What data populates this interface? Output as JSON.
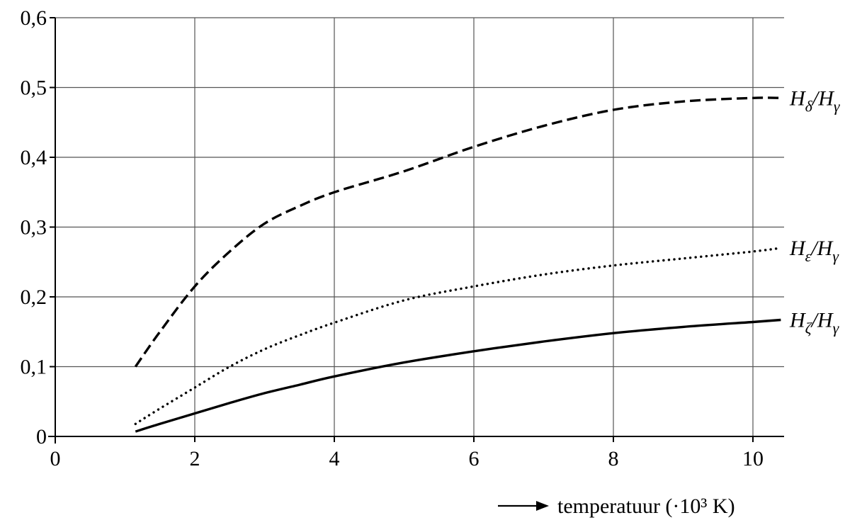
{
  "chart_data": {
    "type": "line",
    "xlabel": "temperatuur (·10³ K)",
    "xlim": [
      0,
      10.4
    ],
    "ylim": [
      0,
      0.6
    ],
    "x_ticks": [
      0,
      2,
      4,
      6,
      8,
      10
    ],
    "x_tick_labels": [
      "0",
      "2",
      "4",
      "6",
      "8",
      "10"
    ],
    "y_ticks": [
      0,
      0.1,
      0.2,
      0.3,
      0.4,
      0.5,
      0.6
    ],
    "y_tick_labels": [
      "0",
      "0,1",
      "0,2",
      "0,3",
      "0,4",
      "0,5",
      "0,6"
    ],
    "grid": true,
    "series": [
      {
        "name": "Hδ/Hγ",
        "label_main": "H",
        "label_sub1": "δ",
        "label_mid": "/H",
        "label_sub2": "γ",
        "style": "dashed",
        "x": [
          1.15,
          1.5,
          2.0,
          2.5,
          3.0,
          3.5,
          4.0,
          5.0,
          6.0,
          7.0,
          8.0,
          9.0,
          10.0,
          10.4
        ],
        "y": [
          0.1,
          0.15,
          0.215,
          0.265,
          0.305,
          0.33,
          0.35,
          0.38,
          0.415,
          0.445,
          0.468,
          0.48,
          0.485,
          0.485
        ]
      },
      {
        "name": "Hε/Hγ",
        "label_main": "H",
        "label_sub1": "ε",
        "label_mid": "/H",
        "label_sub2": "γ",
        "style": "dotted",
        "x": [
          1.15,
          1.5,
          2.0,
          2.5,
          3.0,
          3.5,
          4.0,
          5.0,
          6.0,
          7.0,
          8.0,
          9.0,
          10.0,
          10.4
        ],
        "y": [
          0.018,
          0.04,
          0.07,
          0.1,
          0.125,
          0.145,
          0.163,
          0.195,
          0.215,
          0.232,
          0.245,
          0.255,
          0.265,
          0.27
        ]
      },
      {
        "name": "Hζ/Hγ",
        "label_main": "H",
        "label_sub1": "ζ",
        "label_mid": "/H",
        "label_sub2": "γ",
        "style": "solid",
        "x": [
          1.15,
          1.5,
          2.0,
          2.5,
          3.0,
          3.5,
          4.0,
          5.0,
          6.0,
          7.0,
          8.0,
          9.0,
          10.0,
          10.4
        ],
        "y": [
          0.007,
          0.018,
          0.033,
          0.048,
          0.062,
          0.074,
          0.086,
          0.106,
          0.122,
          0.136,
          0.148,
          0.157,
          0.164,
          0.167
        ]
      }
    ]
  }
}
